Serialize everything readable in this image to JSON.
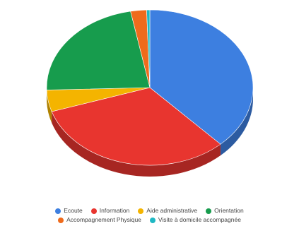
{
  "chart_data": {
    "type": "pie",
    "style": "3d",
    "title": "",
    "categories": [
      "Ecoute",
      "Information",
      "Aide administrative",
      "Orientation",
      "Accompagnement Physique",
      "Visite à domicile accompagnée"
    ],
    "values": [
      38,
      32,
      4.5,
      22.5,
      2.5,
      0.5
    ],
    "colors": [
      "#3d7fe0",
      "#e8352f",
      "#f4b400",
      "#179c4d",
      "#ef6b1c",
      "#1fb8c4"
    ],
    "legend_position": "bottom"
  }
}
